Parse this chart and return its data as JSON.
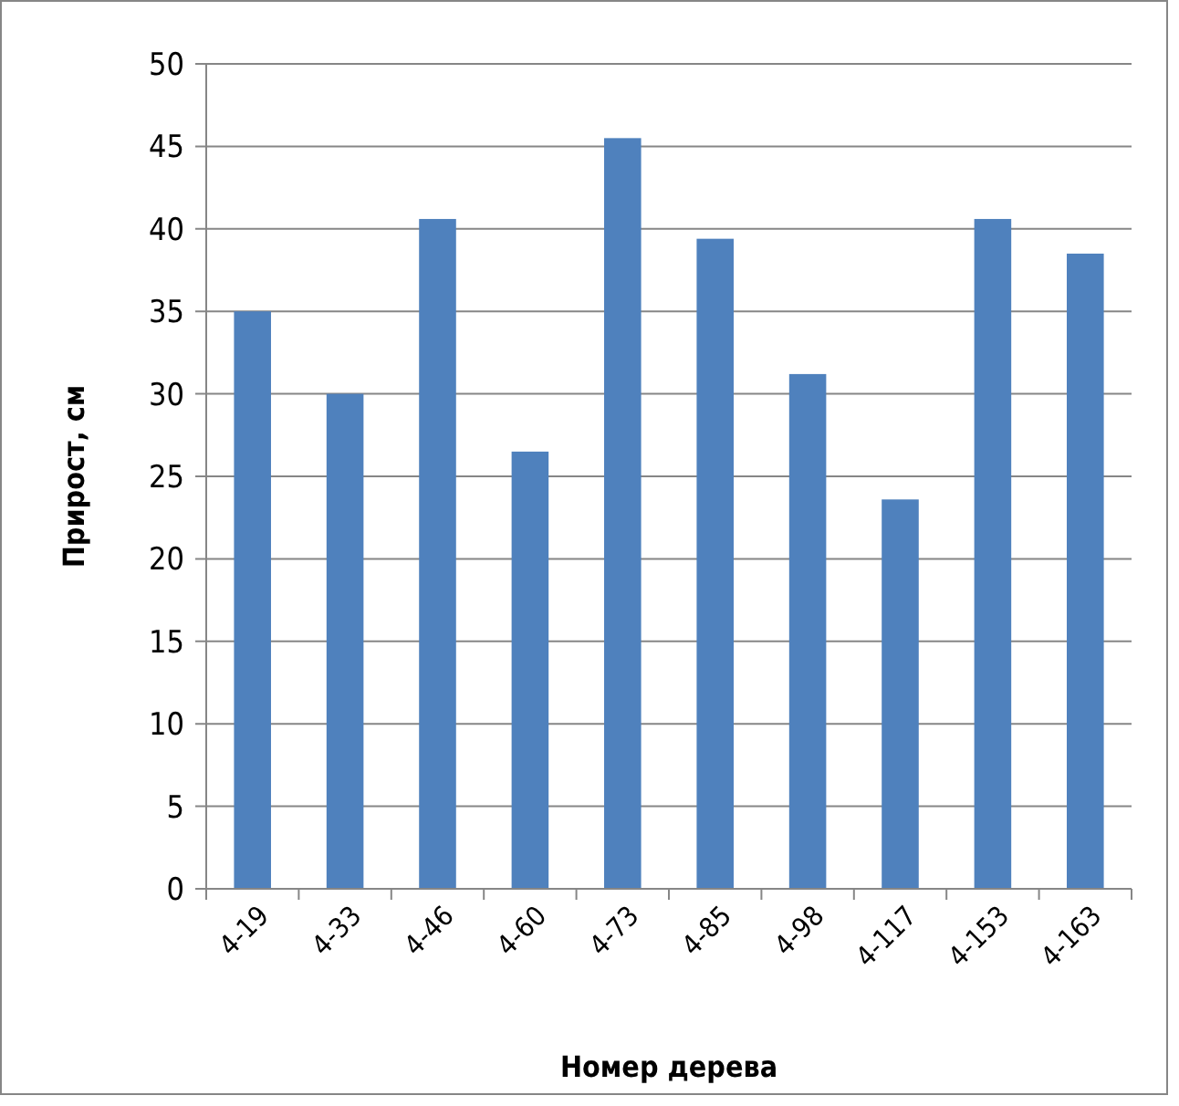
{
  "chart_data": {
    "type": "bar",
    "xlabel": "Номер дерева",
    "ylabel": "Прирост, см",
    "categories": [
      "4-19",
      "4-33",
      "4-46",
      "4-60",
      "4-73",
      "4-85",
      "4-98",
      "4-117",
      "4-153",
      "4-163"
    ],
    "values": [
      35,
      30,
      40.6,
      26.5,
      45.5,
      39.4,
      31.2,
      23.6,
      40.6,
      38.5
    ],
    "color": "#4f81bd",
    "ylim": [
      0,
      50
    ],
    "yticks": [
      0,
      5,
      10,
      15,
      20,
      25,
      30,
      35,
      40,
      45,
      50
    ],
    "grid": "y"
  }
}
